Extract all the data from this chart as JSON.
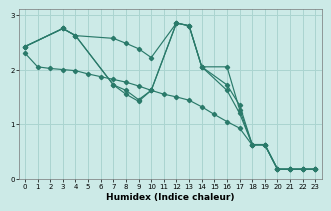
{
  "xlabel": "Humidex (Indice chaleur)",
  "bg_color": "#cceae7",
  "grid_color": "#aad4d0",
  "line_color": "#2a7a6a",
  "xlim": [
    -0.5,
    23.5
  ],
  "ylim": [
    0,
    3.1
  ],
  "yticks": [
    0,
    1,
    2,
    3
  ],
  "xticks": [
    0,
    1,
    2,
    3,
    4,
    5,
    6,
    7,
    8,
    9,
    10,
    11,
    12,
    13,
    14,
    15,
    16,
    17,
    18,
    19,
    20,
    21,
    22,
    23
  ],
  "line1_x": [
    0,
    1,
    2,
    3,
    4,
    5,
    6,
    7,
    8,
    9,
    10,
    11,
    12,
    13,
    14,
    15,
    16,
    17,
    18,
    19,
    20,
    21,
    22,
    23
  ],
  "line1_y": [
    2.3,
    2.05,
    2.02,
    2.0,
    1.98,
    1.92,
    1.87,
    1.82,
    1.77,
    1.7,
    1.62,
    1.55,
    1.5,
    1.44,
    1.32,
    1.18,
    1.05,
    0.93,
    0.62,
    0.62,
    0.18,
    0.18,
    0.18,
    0.18
  ],
  "line2_x": [
    0,
    3,
    4,
    7,
    8,
    9,
    10,
    12,
    13,
    14,
    16,
    17,
    18,
    19,
    20,
    21,
    22,
    23
  ],
  "line2_y": [
    2.42,
    2.75,
    2.62,
    2.57,
    2.48,
    2.38,
    2.22,
    2.85,
    2.8,
    2.05,
    2.05,
    1.27,
    0.63,
    0.63,
    0.18,
    0.18,
    0.18,
    0.18
  ],
  "line3_x": [
    0,
    3,
    4,
    7,
    8,
    9,
    10,
    12,
    13,
    14,
    16,
    17,
    18,
    19,
    20,
    21,
    22,
    23
  ],
  "line3_y": [
    2.42,
    2.75,
    2.62,
    1.72,
    1.62,
    1.45,
    1.62,
    2.85,
    2.8,
    2.05,
    1.62,
    1.2,
    0.63,
    0.63,
    0.18,
    0.18,
    0.18,
    0.18
  ],
  "line4_x": [
    0,
    3,
    4,
    7,
    8,
    9,
    10,
    12,
    13,
    14,
    16,
    17,
    18,
    19,
    20,
    21,
    22,
    23
  ],
  "line4_y": [
    2.42,
    2.75,
    2.62,
    1.72,
    1.55,
    1.42,
    1.62,
    2.85,
    2.8,
    2.05,
    1.72,
    1.35,
    0.63,
    0.63,
    0.18,
    0.18,
    0.18,
    0.18
  ]
}
